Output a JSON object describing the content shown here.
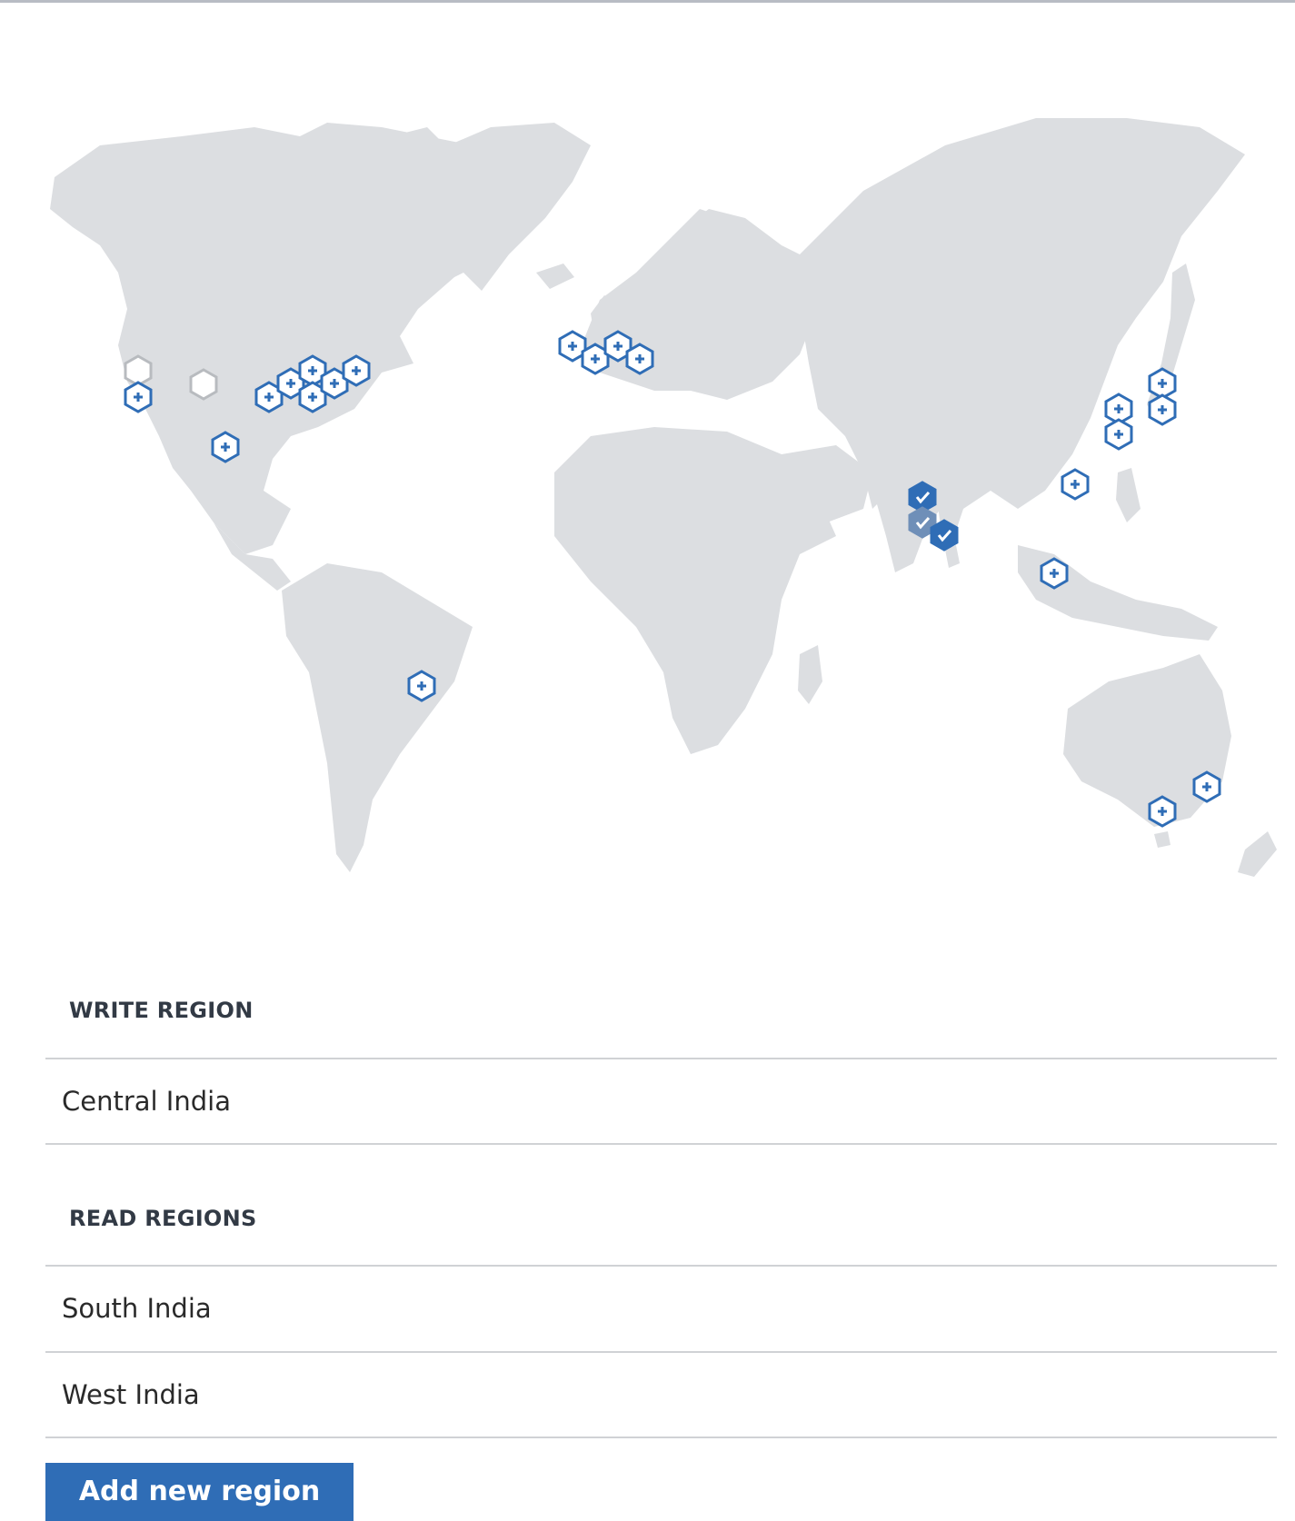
{
  "map": {
    "colors": {
      "land": "#dcdee1",
      "available": "#2f6db6",
      "selected_write": "#2f6db6",
      "selected_read": "#6f8fb8",
      "unavailable": "#b8bbbf"
    },
    "regions": [
      {
        "id": "us-west-unavailable",
        "state": "unavailable",
        "icon": "hexagon-icon"
      },
      {
        "id": "us-west",
        "state": "available",
        "icon": "plus-hexagon-icon"
      },
      {
        "id": "us-mountain-unavailable",
        "state": "unavailable",
        "icon": "hexagon-icon"
      },
      {
        "id": "us-south",
        "state": "available",
        "icon": "plus-hexagon-icon"
      },
      {
        "id": "us-central-1",
        "state": "available",
        "icon": "plus-hexagon-icon"
      },
      {
        "id": "us-central-2",
        "state": "available",
        "icon": "plus-hexagon-icon"
      },
      {
        "id": "us-central-3",
        "state": "available",
        "icon": "plus-hexagon-icon"
      },
      {
        "id": "us-central-4",
        "state": "available",
        "icon": "plus-hexagon-icon"
      },
      {
        "id": "us-east-1",
        "state": "available",
        "icon": "plus-hexagon-icon"
      },
      {
        "id": "us-east-2",
        "state": "available",
        "icon": "plus-hexagon-icon"
      },
      {
        "id": "europe-1",
        "state": "available",
        "icon": "plus-hexagon-icon"
      },
      {
        "id": "europe-2",
        "state": "available",
        "icon": "plus-hexagon-icon"
      },
      {
        "id": "europe-3",
        "state": "available",
        "icon": "plus-hexagon-icon"
      },
      {
        "id": "europe-4",
        "state": "available",
        "icon": "plus-hexagon-icon"
      },
      {
        "id": "brazil",
        "state": "available",
        "icon": "plus-hexagon-icon"
      },
      {
        "id": "central-india",
        "state": "write",
        "icon": "check-hexagon-icon"
      },
      {
        "id": "west-india",
        "state": "read",
        "icon": "check-hexagon-icon"
      },
      {
        "id": "south-india",
        "state": "read-selected",
        "icon": "check-hexagon-icon"
      },
      {
        "id": "southeast-asia",
        "state": "available",
        "icon": "plus-hexagon-icon"
      },
      {
        "id": "east-asia",
        "state": "available",
        "icon": "plus-hexagon-icon"
      },
      {
        "id": "korea-1",
        "state": "available",
        "icon": "plus-hexagon-icon"
      },
      {
        "id": "korea-2",
        "state": "available",
        "icon": "plus-hexagon-icon"
      },
      {
        "id": "japan-1",
        "state": "available",
        "icon": "plus-hexagon-icon"
      },
      {
        "id": "japan-2",
        "state": "available",
        "icon": "plus-hexagon-icon"
      },
      {
        "id": "australia-1",
        "state": "available",
        "icon": "plus-hexagon-icon"
      },
      {
        "id": "australia-2",
        "state": "available",
        "icon": "plus-hexagon-icon"
      }
    ]
  },
  "write_region": {
    "heading": "WRITE REGION",
    "items": [
      "Central India"
    ]
  },
  "read_regions": {
    "heading": "READ REGIONS",
    "items": [
      "South India",
      "West India"
    ]
  },
  "actions": {
    "add_region_label": "Add new region"
  },
  "accent_color": "#2f6db6"
}
